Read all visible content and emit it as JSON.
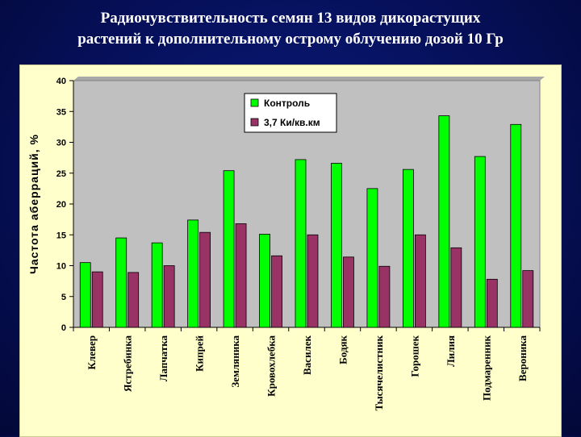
{
  "slide": {
    "title_line1": "Радиочувствительность семян 13 видов дикорастущих",
    "title_line2": "растений к дополнительному острому облучению дозой 10 Гр"
  },
  "colors": {
    "background": "#06105a",
    "panel": "#ffffcc",
    "plot_area": "#c0c0c0",
    "series1": "#00ff00",
    "series2": "#993366"
  },
  "chart_data": {
    "type": "bar",
    "title": "",
    "xlabel": "",
    "ylabel": "Частота аберраций, %",
    "ylim": [
      0,
      40
    ],
    "yticks": [
      0,
      5,
      10,
      15,
      20,
      25,
      30,
      35,
      40
    ],
    "grid": false,
    "legend_position": "top-center",
    "categories": [
      "Клевер",
      "Ястребинка",
      "Лапчатка",
      "Кипрей",
      "Земляника",
      "Кровохлебка",
      "Василек",
      "Бодяк",
      "Тысячелистник",
      "Горошек",
      "Лилия",
      "Подмаренник",
      "Вероника"
    ],
    "series": [
      {
        "name": "Контроль",
        "color": "#00ff00",
        "values": [
          10.5,
          14.5,
          13.7,
          17.4,
          25.4,
          15.1,
          27.2,
          26.6,
          22.5,
          25.6,
          34.3,
          27.7,
          32.9
        ]
      },
      {
        "name": "3,7 Ки/кв.км",
        "color": "#993366",
        "values": [
          9.0,
          8.9,
          10.0,
          15.4,
          16.8,
          11.6,
          15.0,
          11.4,
          9.9,
          15.0,
          12.9,
          7.8,
          9.2
        ]
      }
    ]
  }
}
